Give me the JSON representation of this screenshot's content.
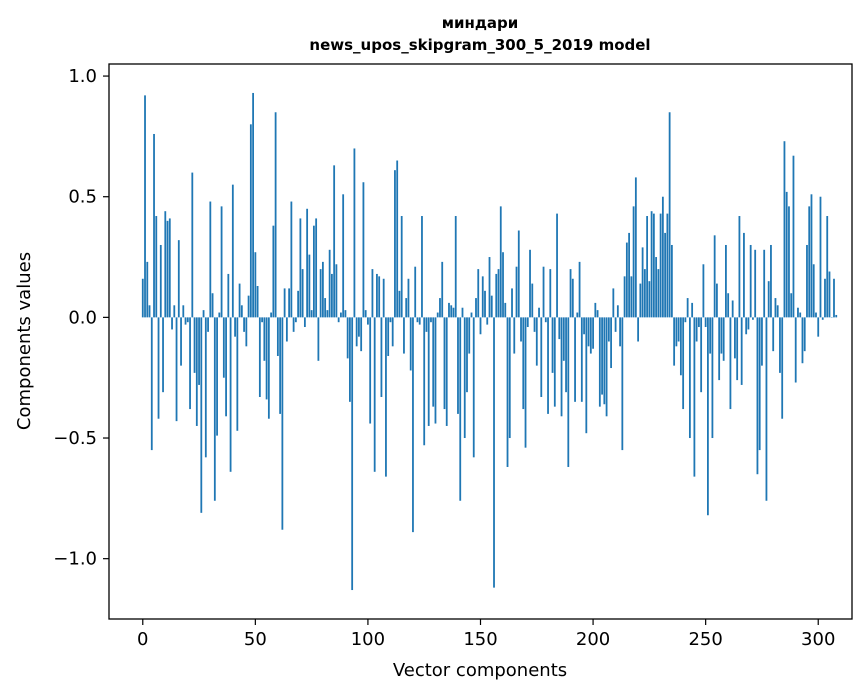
{
  "chart_data": {
    "type": "bar",
    "title": "миндари",
    "subtitle": "news_upos_skipgram_300_5_2019 model",
    "xlabel": "Vector components",
    "ylabel": "Components values",
    "xlim": [
      -15,
      315
    ],
    "ylim": [
      -1.25,
      1.05
    ],
    "xticks": [
      0,
      50,
      100,
      150,
      200,
      250,
      300
    ],
    "xtick_labels": [
      "0",
      "50",
      "100",
      "150",
      "200",
      "250",
      "300"
    ],
    "yticks": [
      -1.0,
      -0.5,
      0.0,
      0.5,
      1.0
    ],
    "ytick_labels": [
      "−1.0",
      "−0.5",
      "0.0",
      "0.5",
      "1.0"
    ],
    "bar_color": "#1f77b4",
    "values": [
      0.16,
      0.92,
      0.23,
      0.05,
      -0.55,
      0.76,
      0.42,
      -0.42,
      0.3,
      -0.31,
      0.44,
      0.4,
      0.41,
      -0.05,
      0.05,
      -0.43,
      0.32,
      -0.2,
      0.05,
      -0.03,
      -0.02,
      -0.38,
      0.6,
      -0.23,
      -0.45,
      -0.28,
      -0.81,
      0.03,
      -0.58,
      -0.06,
      0.48,
      0.1,
      -0.76,
      -0.49,
      0.02,
      0.46,
      -0.25,
      -0.41,
      0.18,
      -0.64,
      0.55,
      -0.08,
      -0.47,
      0.14,
      0.05,
      -0.06,
      -0.12,
      0.09,
      0.8,
      0.93,
      0.27,
      0.13,
      -0.33,
      -0.02,
      -0.18,
      -0.34,
      -0.42,
      0.02,
      0.38,
      0.85,
      -0.16,
      -0.4,
      -0.88,
      0.12,
      -0.1,
      0.12,
      0.48,
      -0.06,
      -0.02,
      0.11,
      0.41,
      0.2,
      -0.04,
      0.45,
      0.26,
      0.03,
      0.38,
      0.41,
      -0.18,
      0.2,
      0.23,
      0.08,
      0.03,
      0.28,
      0.18,
      0.63,
      0.22,
      -0.02,
      0.02,
      0.51,
      0.03,
      -0.17,
      -0.35,
      -1.13,
      0.7,
      -0.12,
      -0.08,
      -0.14,
      0.56,
      0.03,
      -0.03,
      -0.44,
      0.2,
      -0.64,
      0.18,
      0.17,
      -0.33,
      0.16,
      -0.66,
      -0.16,
      -0.02,
      -0.12,
      0.61,
      0.65,
      0.11,
      0.42,
      -0.15,
      0.08,
      0.16,
      -0.22,
      -0.89,
      0.21,
      -0.02,
      -0.03,
      0.42,
      -0.53,
      -0.06,
      -0.45,
      -0.02,
      -0.37,
      -0.44,
      0.02,
      0.08,
      0.23,
      -0.38,
      -0.45,
      0.06,
      0.05,
      0.04,
      0.42,
      -0.4,
      -0.76,
      0.04,
      -0.5,
      -0.31,
      -0.15,
      0.02,
      -0.58,
      0.08,
      0.2,
      -0.07,
      0.17,
      0.11,
      -0.03,
      0.25,
      0.09,
      -1.12,
      0.18,
      0.2,
      0.46,
      0.27,
      0.06,
      -0.62,
      -0.5,
      0.12,
      -0.15,
      0.21,
      0.36,
      -0.1,
      -0.38,
      -0.54,
      -0.04,
      0.28,
      0.14,
      -0.06,
      -0.2,
      0.04,
      -0.33,
      0.21,
      -0.02,
      -0.4,
      0.2,
      -0.23,
      -0.37,
      0.43,
      -0.09,
      -0.41,
      -0.18,
      -0.31,
      -0.62,
      0.2,
      0.16,
      -0.35,
      0.02,
      0.23,
      -0.35,
      -0.07,
      -0.48,
      -0.12,
      -0.15,
      -0.13,
      0.06,
      0.03,
      -0.37,
      -0.32,
      -0.36,
      -0.41,
      -0.1,
      -0.21,
      0.12,
      -0.06,
      0.05,
      -0.12,
      -0.55,
      0.17,
      0.31,
      0.35,
      0.17,
      0.46,
      0.58,
      -0.1,
      0.14,
      0.29,
      0.2,
      0.42,
      0.15,
      0.44,
      0.43,
      0.25,
      0.2,
      0.43,
      0.5,
      0.35,
      0.43,
      0.85,
      0.3,
      -0.2,
      -0.12,
      -0.1,
      -0.24,
      -0.38,
      -0.02,
      0.08,
      -0.5,
      0.06,
      -0.66,
      -0.1,
      -0.04,
      -0.31,
      0.22,
      -0.04,
      -0.82,
      -0.15,
      -0.5,
      0.34,
      0.14,
      -0.26,
      -0.15,
      -0.18,
      0.3,
      0.1,
      -0.38,
      0.07,
      -0.17,
      -0.26,
      0.42,
      -0.28,
      0.35,
      -0.07,
      -0.05,
      0.3,
      -0.01,
      0.28,
      -0.65,
      -0.55,
      -0.2,
      0.28,
      -0.76,
      0.15,
      0.3,
      -0.14,
      0.08,
      0.05,
      -0.23,
      -0.42,
      0.73,
      0.52,
      0.46,
      0.1,
      0.67,
      -0.27,
      0.04,
      0.02,
      -0.19,
      -0.14,
      0.3,
      0.46,
      0.51,
      0.22,
      0.02,
      -0.08,
      0.5,
      -0.01,
      0.16,
      0.42,
      0.19,
      0.0,
      0.16,
      0.01
    ]
  }
}
